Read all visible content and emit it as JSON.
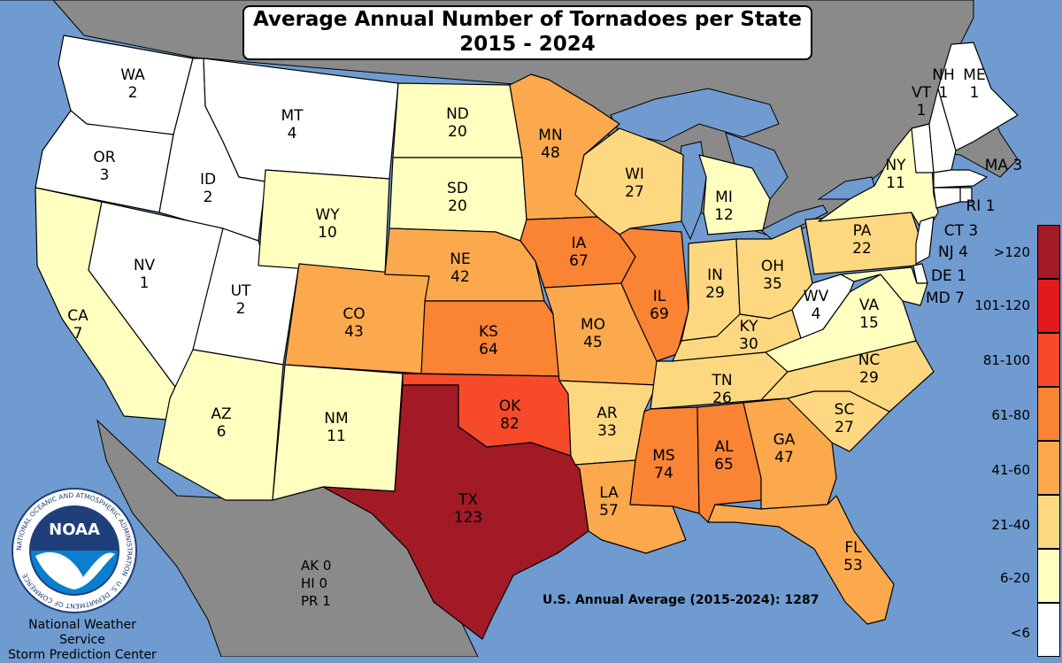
{
  "title": {
    "line1": "Average Annual Number of Tornadoes per State",
    "line2": "2015 - 2024"
  },
  "colors": {
    "ocean": "#6f9bd0",
    "land_outside": "#8a8a8a",
    "lt6": "#ffffff",
    "6-20": "#ffffc0",
    "21-40": "#fed880",
    "41-60": "#fca94e",
    "61-80": "#fa8334",
    "81-100": "#f64a2a",
    "101-120": "#e31a1c",
    "gt120": "#a11a26"
  },
  "states": [
    {
      "abbr": "WA",
      "value": "2",
      "bin": "lt6"
    },
    {
      "abbr": "OR",
      "value": "3",
      "bin": "lt6"
    },
    {
      "abbr": "CA",
      "value": "7",
      "bin": "6-20"
    },
    {
      "abbr": "ID",
      "value": "2",
      "bin": "lt6"
    },
    {
      "abbr": "NV",
      "value": "1",
      "bin": "lt6"
    },
    {
      "abbr": "UT",
      "value": "2",
      "bin": "lt6"
    },
    {
      "abbr": "AZ",
      "value": "6",
      "bin": "6-20"
    },
    {
      "abbr": "MT",
      "value": "4",
      "bin": "lt6"
    },
    {
      "abbr": "WY",
      "value": "10",
      "bin": "6-20"
    },
    {
      "abbr": "CO",
      "value": "43",
      "bin": "41-60"
    },
    {
      "abbr": "NM",
      "value": "11",
      "bin": "6-20"
    },
    {
      "abbr": "ND",
      "value": "20",
      "bin": "6-20"
    },
    {
      "abbr": "SD",
      "value": "20",
      "bin": "6-20"
    },
    {
      "abbr": "NE",
      "value": "42",
      "bin": "41-60"
    },
    {
      "abbr": "KS",
      "value": "64",
      "bin": "61-80"
    },
    {
      "abbr": "OK",
      "value": "82",
      "bin": "81-100"
    },
    {
      "abbr": "TX",
      "value": "123",
      "bin": "gt120"
    },
    {
      "abbr": "MN",
      "value": "48",
      "bin": "41-60"
    },
    {
      "abbr": "IA",
      "value": "67",
      "bin": "61-80"
    },
    {
      "abbr": "MO",
      "value": "45",
      "bin": "41-60"
    },
    {
      "abbr": "AR",
      "value": "33",
      "bin": "21-40"
    },
    {
      "abbr": "LA",
      "value": "57",
      "bin": "41-60"
    },
    {
      "abbr": "WI",
      "value": "27",
      "bin": "21-40"
    },
    {
      "abbr": "IL",
      "value": "69",
      "bin": "61-80"
    },
    {
      "abbr": "MI",
      "value": "12",
      "bin": "6-20"
    },
    {
      "abbr": "IN",
      "value": "29",
      "bin": "21-40"
    },
    {
      "abbr": "OH",
      "value": "35",
      "bin": "21-40"
    },
    {
      "abbr": "KY",
      "value": "30",
      "bin": "21-40"
    },
    {
      "abbr": "TN",
      "value": "26",
      "bin": "21-40"
    },
    {
      "abbr": "MS",
      "value": "74",
      "bin": "61-80"
    },
    {
      "abbr": "AL",
      "value": "65",
      "bin": "61-80"
    },
    {
      "abbr": "GA",
      "value": "47",
      "bin": "41-60"
    },
    {
      "abbr": "FL",
      "value": "53",
      "bin": "41-60"
    },
    {
      "abbr": "SC",
      "value": "27",
      "bin": "21-40"
    },
    {
      "abbr": "NC",
      "value": "29",
      "bin": "21-40"
    },
    {
      "abbr": "VA",
      "value": "15",
      "bin": "6-20"
    },
    {
      "abbr": "WV",
      "value": "4",
      "bin": "lt6"
    },
    {
      "abbr": "PA",
      "value": "22",
      "bin": "21-40"
    },
    {
      "abbr": "NY",
      "value": "11",
      "bin": "6-20"
    },
    {
      "abbr": "VT",
      "value": "1",
      "bin": "lt6"
    },
    {
      "abbr": "NH",
      "value": "1",
      "bin": "lt6"
    },
    {
      "abbr": "ME",
      "value": "1",
      "bin": "lt6"
    },
    {
      "abbr": "MA",
      "value": "3",
      "bin": "lt6"
    },
    {
      "abbr": "RI",
      "value": "1",
      "bin": "lt6"
    },
    {
      "abbr": "CT",
      "value": "3",
      "bin": "lt6"
    },
    {
      "abbr": "NJ",
      "value": "4",
      "bin": "lt6"
    },
    {
      "abbr": "DE",
      "value": "1",
      "bin": "lt6"
    },
    {
      "abbr": "MD",
      "value": "7",
      "bin": "6-20"
    }
  ],
  "labels": {
    "ma": "MA 3",
    "ri": "RI 1",
    "ct": "CT 3",
    "nj": "NJ 4",
    "de": "DE 1",
    "md": "MD 7"
  },
  "footnotes": {
    "ak": "AK 0",
    "hi": "HI 0",
    "pr": "PR 1"
  },
  "us_average": "U.S. Annual Average (2015-2024): 1287",
  "agency": {
    "line1": "National Weather Service",
    "line2": "Storm Prediction Center",
    "logo_text": "NOAA",
    "seal_text": "NATIONAL OCEANIC AND ATMOSPHERIC ADMINISTRATION · U.S. DEPARTMENT OF COMMERCE"
  },
  "legend": [
    {
      "label": ">120",
      "bin": "gt120"
    },
    {
      "label": "101-120",
      "bin": "101-120"
    },
    {
      "label": "81-100",
      "bin": "81-100"
    },
    {
      "label": "61-80",
      "bin": "61-80"
    },
    {
      "label": "41-60",
      "bin": "41-60"
    },
    {
      "label": "21-40",
      "bin": "21-40"
    },
    {
      "label": "6-20",
      "bin": "6-20"
    },
    {
      "label": "<6",
      "bin": "lt6"
    }
  ]
}
